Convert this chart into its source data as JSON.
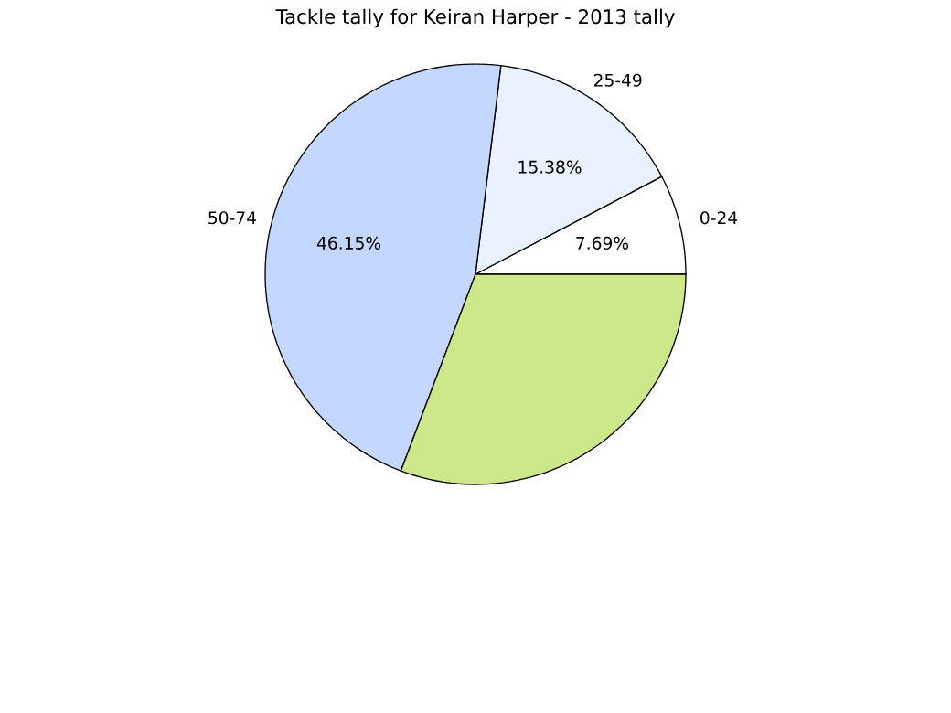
{
  "chart_data": {
    "type": "pie",
    "title": "Tackle tally for Keiran Harper - 2013 tally",
    "categories": [
      "0-24",
      "25-49",
      "50-74",
      null
    ],
    "values": [
      7.69,
      15.38,
      46.15,
      30.77
    ],
    "colors": [
      "#ffffff",
      "#eaf1ff",
      "#c4d8ff",
      "#cde88a"
    ],
    "value_labels": [
      "7.69%",
      "15.38%",
      "46.15%",
      null
    ]
  }
}
